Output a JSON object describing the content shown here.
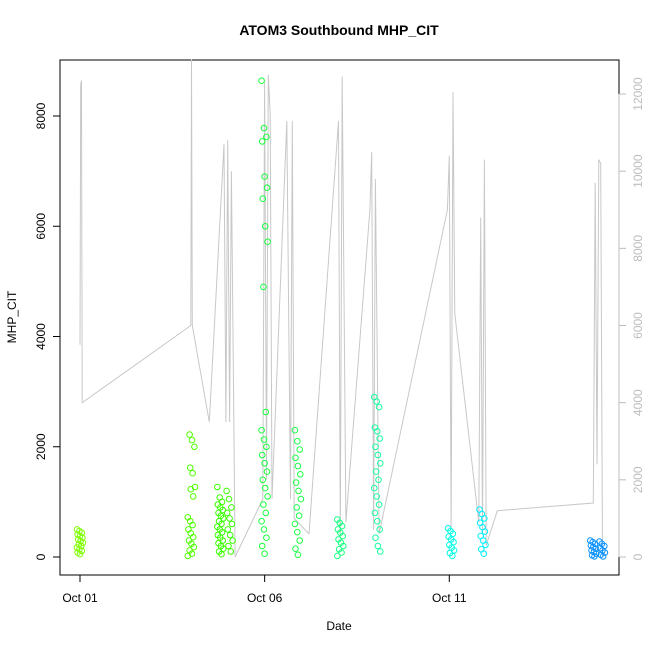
{
  "chart_data": {
    "type": "scatter",
    "title": "ATOM3 Southbound MHP_CIT",
    "xlabel": "Date",
    "ylabel": "MHP_CIT",
    "xlim": [
      0,
      14
    ],
    "x_ticks": [
      {
        "value": 0,
        "label": "Oct 01"
      },
      {
        "value": 5,
        "label": "Oct 06"
      },
      {
        "value": 10,
        "label": "Oct 11"
      }
    ],
    "ylim": [
      0,
      8900
    ],
    "y_ticks": [
      0,
      2000,
      4000,
      6000,
      8000
    ],
    "y2lim": [
      0,
      13300
    ],
    "y2_ticks": [
      0,
      2000,
      4000,
      6000,
      8000,
      10000,
      12000
    ],
    "grid": false,
    "legend": "none",
    "line_color": "#c8c8c8",
    "secondary_line": [
      {
        "x": 0.0,
        "y": 5500
      },
      {
        "x": 0.02,
        "y": 12250
      },
      {
        "x": 0.04,
        "y": 12350
      },
      {
        "x": 0.06,
        "y": 4000
      },
      {
        "x": 3.0,
        "y": 6000
      },
      {
        "x": 3.02,
        "y": 12900
      },
      {
        "x": 3.04,
        "y": 6000
      },
      {
        "x": 3.5,
        "y": 3500
      },
      {
        "x": 3.9,
        "y": 10700
      },
      {
        "x": 3.95,
        "y": 3500
      },
      {
        "x": 4.0,
        "y": 10800
      },
      {
        "x": 4.05,
        "y": 3500
      },
      {
        "x": 4.1,
        "y": 10000
      },
      {
        "x": 4.15,
        "y": 5000
      },
      {
        "x": 4.2,
        "y": 0
      },
      {
        "x": 4.95,
        "y": 1500
      },
      {
        "x": 5.0,
        "y": 12300
      },
      {
        "x": 5.05,
        "y": 2000
      },
      {
        "x": 5.1,
        "y": 12500
      },
      {
        "x": 5.15,
        "y": 11500
      },
      {
        "x": 5.2,
        "y": 1500
      },
      {
        "x": 5.6,
        "y": 11300
      },
      {
        "x": 5.7,
        "y": 1500
      },
      {
        "x": 5.75,
        "y": 11300
      },
      {
        "x": 5.8,
        "y": 1000
      },
      {
        "x": 6.2,
        "y": 600
      },
      {
        "x": 7.0,
        "y": 11300
      },
      {
        "x": 7.05,
        "y": 600
      },
      {
        "x": 7.1,
        "y": 12450
      },
      {
        "x": 7.2,
        "y": 900
      },
      {
        "x": 7.85,
        "y": 9000
      },
      {
        "x": 7.9,
        "y": 10500
      },
      {
        "x": 7.95,
        "y": 700
      },
      {
        "x": 8.0,
        "y": 9800
      },
      {
        "x": 8.1,
        "y": 600
      },
      {
        "x": 9.95,
        "y": 9000
      },
      {
        "x": 10.0,
        "y": 10400
      },
      {
        "x": 10.05,
        "y": 700
      },
      {
        "x": 10.1,
        "y": 12050
      },
      {
        "x": 10.15,
        "y": 6300
      },
      {
        "x": 10.8,
        "y": 900
      },
      {
        "x": 10.85,
        "y": 8800
      },
      {
        "x": 10.9,
        "y": 600
      },
      {
        "x": 10.95,
        "y": 10300
      },
      {
        "x": 11.0,
        "y": 300
      },
      {
        "x": 11.3,
        "y": 1200
      },
      {
        "x": 13.9,
        "y": 1400
      },
      {
        "x": 13.95,
        "y": 9700
      },
      {
        "x": 14.0,
        "y": 2400
      },
      {
        "x": 14.05,
        "y": 10300
      },
      {
        "x": 14.1,
        "y": 10200
      },
      {
        "x": 14.15,
        "y": 0
      }
    ],
    "series": [
      {
        "x": 0.0,
        "color": "#7fff00",
        "points": [
          {
            "y": 500
          },
          {
            "y": 470
          },
          {
            "y": 440
          },
          {
            "y": 410
          },
          {
            "y": 380
          },
          {
            "y": 350
          },
          {
            "y": 320
          },
          {
            "y": 290
          },
          {
            "y": 260
          },
          {
            "y": 230
          },
          {
            "y": 200
          },
          {
            "y": 170
          },
          {
            "y": 140
          },
          {
            "y": 110
          },
          {
            "y": 80
          },
          {
            "y": 50
          }
        ]
      },
      {
        "x": 3.0,
        "color": "#4fff00",
        "points": [
          {
            "y": 720
          },
          {
            "y": 650
          },
          {
            "y": 580
          },
          {
            "y": 500
          },
          {
            "y": 430
          },
          {
            "y": 360
          },
          {
            "y": 300
          },
          {
            "y": 240
          },
          {
            "y": 180
          },
          {
            "y": 120
          },
          {
            "y": 60
          },
          {
            "y": 20
          }
        ]
      },
      {
        "x": 3.05,
        "color": "#4fff00",
        "points": [
          {
            "y": 2220
          },
          {
            "y": 2120
          },
          {
            "y": 2000
          },
          {
            "y": 1620
          },
          {
            "y": 1520
          },
          {
            "y": 1270
          },
          {
            "y": 1230
          },
          {
            "y": 1100
          }
        ]
      },
      {
        "x": 3.8,
        "color": "#39ff00",
        "points": [
          {
            "y": 1270
          },
          {
            "y": 1080
          },
          {
            "y": 1000
          },
          {
            "y": 950
          },
          {
            "y": 900
          },
          {
            "y": 850
          },
          {
            "y": 800
          },
          {
            "y": 750
          },
          {
            "y": 700
          },
          {
            "y": 650
          },
          {
            "y": 600
          },
          {
            "y": 550
          },
          {
            "y": 500
          },
          {
            "y": 450
          },
          {
            "y": 400
          },
          {
            "y": 350
          },
          {
            "y": 300
          },
          {
            "y": 250
          },
          {
            "y": 200
          },
          {
            "y": 150
          },
          {
            "y": 100
          },
          {
            "y": 50
          }
        ]
      },
      {
        "x": 4.05,
        "color": "#39ff00",
        "points": [
          {
            "y": 1200
          },
          {
            "y": 1050
          },
          {
            "y": 900
          },
          {
            "y": 800
          },
          {
            "y": 700
          },
          {
            "y": 600
          },
          {
            "y": 500
          },
          {
            "y": 400
          },
          {
            "y": 300
          },
          {
            "y": 200
          },
          {
            "y": 100
          }
        ]
      },
      {
        "x": 5.0,
        "color": "#19ff3c",
        "points": [
          {
            "y": 8640
          },
          {
            "y": 7780
          },
          {
            "y": 7620
          },
          {
            "y": 7540
          },
          {
            "y": 6900
          },
          {
            "y": 6700
          },
          {
            "y": 6500
          },
          {
            "y": 6000
          },
          {
            "y": 5720
          },
          {
            "y": 4900
          },
          {
            "y": 2630
          },
          {
            "y": 2300
          },
          {
            "y": 2130
          },
          {
            "y": 2000
          },
          {
            "y": 1850
          },
          {
            "y": 1700
          },
          {
            "y": 1550
          },
          {
            "y": 1400
          },
          {
            "y": 1250
          },
          {
            "y": 1100
          },
          {
            "y": 950
          },
          {
            "y": 800
          },
          {
            "y": 650
          },
          {
            "y": 500
          },
          {
            "y": 350
          },
          {
            "y": 200
          },
          {
            "y": 60
          }
        ]
      },
      {
        "x": 5.9,
        "color": "#1aff46",
        "points": [
          {
            "y": 2300
          },
          {
            "y": 2100
          },
          {
            "y": 1950
          },
          {
            "y": 1800
          },
          {
            "y": 1650
          },
          {
            "y": 1500
          },
          {
            "y": 1350
          },
          {
            "y": 1200
          },
          {
            "y": 1050
          },
          {
            "y": 900
          },
          {
            "y": 750
          },
          {
            "y": 600
          },
          {
            "y": 450
          },
          {
            "y": 300
          },
          {
            "y": 150
          },
          {
            "y": 40
          }
        ]
      },
      {
        "x": 7.05,
        "color": "#19ff82",
        "points": [
          {
            "y": 680
          },
          {
            "y": 620
          },
          {
            "y": 560
          },
          {
            "y": 500
          },
          {
            "y": 440
          },
          {
            "y": 380
          },
          {
            "y": 320
          },
          {
            "y": 260
          },
          {
            "y": 200
          },
          {
            "y": 140
          },
          {
            "y": 80
          },
          {
            "y": 20
          }
        ]
      },
      {
        "x": 8.05,
        "color": "#19ffa0",
        "points": [
          {
            "y": 2900
          },
          {
            "y": 2820
          },
          {
            "y": 2720
          },
          {
            "y": 2350
          },
          {
            "y": 2280
          },
          {
            "y": 2150
          },
          {
            "y": 2000
          },
          {
            "y": 1850
          },
          {
            "y": 1700
          },
          {
            "y": 1550
          },
          {
            "y": 1400
          },
          {
            "y": 1250
          },
          {
            "y": 1100
          },
          {
            "y": 950
          },
          {
            "y": 800
          },
          {
            "y": 650
          },
          {
            "y": 500
          },
          {
            "y": 350
          },
          {
            "y": 200
          },
          {
            "y": 100
          }
        ]
      },
      {
        "x": 10.05,
        "color": "#00ffe6",
        "points": [
          {
            "y": 520
          },
          {
            "y": 470
          },
          {
            "y": 420
          },
          {
            "y": 370
          },
          {
            "y": 320
          },
          {
            "y": 270
          },
          {
            "y": 220
          },
          {
            "y": 170
          },
          {
            "y": 120
          },
          {
            "y": 70
          },
          {
            "y": 20
          }
        ]
      },
      {
        "x": 10.9,
        "color": "#00f0ff",
        "points": [
          {
            "y": 860
          },
          {
            "y": 780
          },
          {
            "y": 700
          },
          {
            "y": 620
          },
          {
            "y": 540
          },
          {
            "y": 460
          },
          {
            "y": 380
          },
          {
            "y": 300
          },
          {
            "y": 220
          },
          {
            "y": 140
          },
          {
            "y": 60
          }
        ]
      },
      {
        "x": 13.9,
        "color": "#0a91ff",
        "points": [
          {
            "y": 300
          },
          {
            "y": 270
          },
          {
            "y": 240
          },
          {
            "y": 210
          },
          {
            "y": 180
          },
          {
            "y": 150
          },
          {
            "y": 120
          },
          {
            "y": 90
          },
          {
            "y": 60
          },
          {
            "y": 30
          },
          {
            "y": 10
          }
        ]
      },
      {
        "x": 14.15,
        "color": "#0a91ff",
        "points": [
          {
            "y": 280
          },
          {
            "y": 240
          },
          {
            "y": 200
          },
          {
            "y": 160
          },
          {
            "y": 120
          },
          {
            "y": 80
          },
          {
            "y": 40
          },
          {
            "y": 10
          }
        ]
      }
    ]
  }
}
